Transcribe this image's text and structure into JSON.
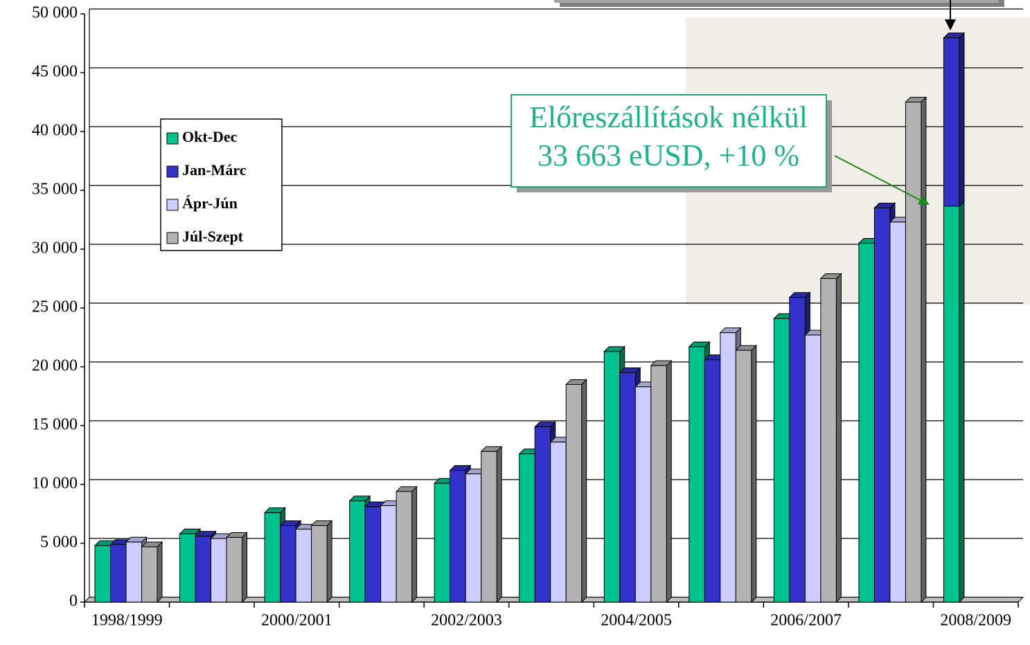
{
  "chart_data": {
    "type": "bar3d",
    "categories": [
      "1998/1999",
      null,
      "2000/2001",
      null,
      "2002/2003",
      null,
      "2004/2005",
      null,
      "2006/2007",
      null,
      "2008/2009"
    ],
    "series": [
      {
        "name": "Okt-Dec",
        "color": "#00c28f",
        "values": [
          4800,
          5800,
          7600,
          8600,
          10100,
          12600,
          21300,
          21700,
          24100,
          30500,
          33663
        ]
      },
      {
        "name": "Jan-Márc",
        "color": "#3333cc",
        "values": [
          4900,
          5600,
          6500,
          8100,
          11200,
          14900,
          19500,
          20600,
          25900,
          33500,
          14300
        ]
      },
      {
        "name": "Ápr-Jún",
        "color": "#ccccff",
        "values": [
          5100,
          5400,
          6200,
          8200,
          10900,
          13600,
          18300,
          22900,
          22700,
          32300,
          null
        ]
      },
      {
        "name": "Júl-Szept",
        "color": "#b2b2b2",
        "values": [
          4700,
          5500,
          6500,
          9400,
          12800,
          18500,
          20100,
          21400,
          27500,
          42500,
          null
        ]
      }
    ],
    "ylim": [
      0,
      50000
    ],
    "yticks": [
      0,
      {
        "value": 5000,
        "label": "5 000"
      },
      {
        "value": 10000,
        "label": "10 000"
      },
      {
        "value": 15000,
        "label": "15 000"
      },
      {
        "value": 20000,
        "label": "20 000"
      },
      {
        "value": 25000,
        "label": "25 000"
      },
      {
        "value": 30000,
        "label": "30 000"
      },
      {
        "value": 35000,
        "label": "35 000"
      },
      {
        "value": 40000,
        "label": "40 000"
      },
      {
        "value": 45000,
        "label": "45 000"
      },
      {
        "value": 50000,
        "label": "50 000"
      }
    ],
    "grid": true,
    "annotation": [
      "Előreszállítások nélkül",
      "33 663 eUSD,   +10 %"
    ]
  }
}
